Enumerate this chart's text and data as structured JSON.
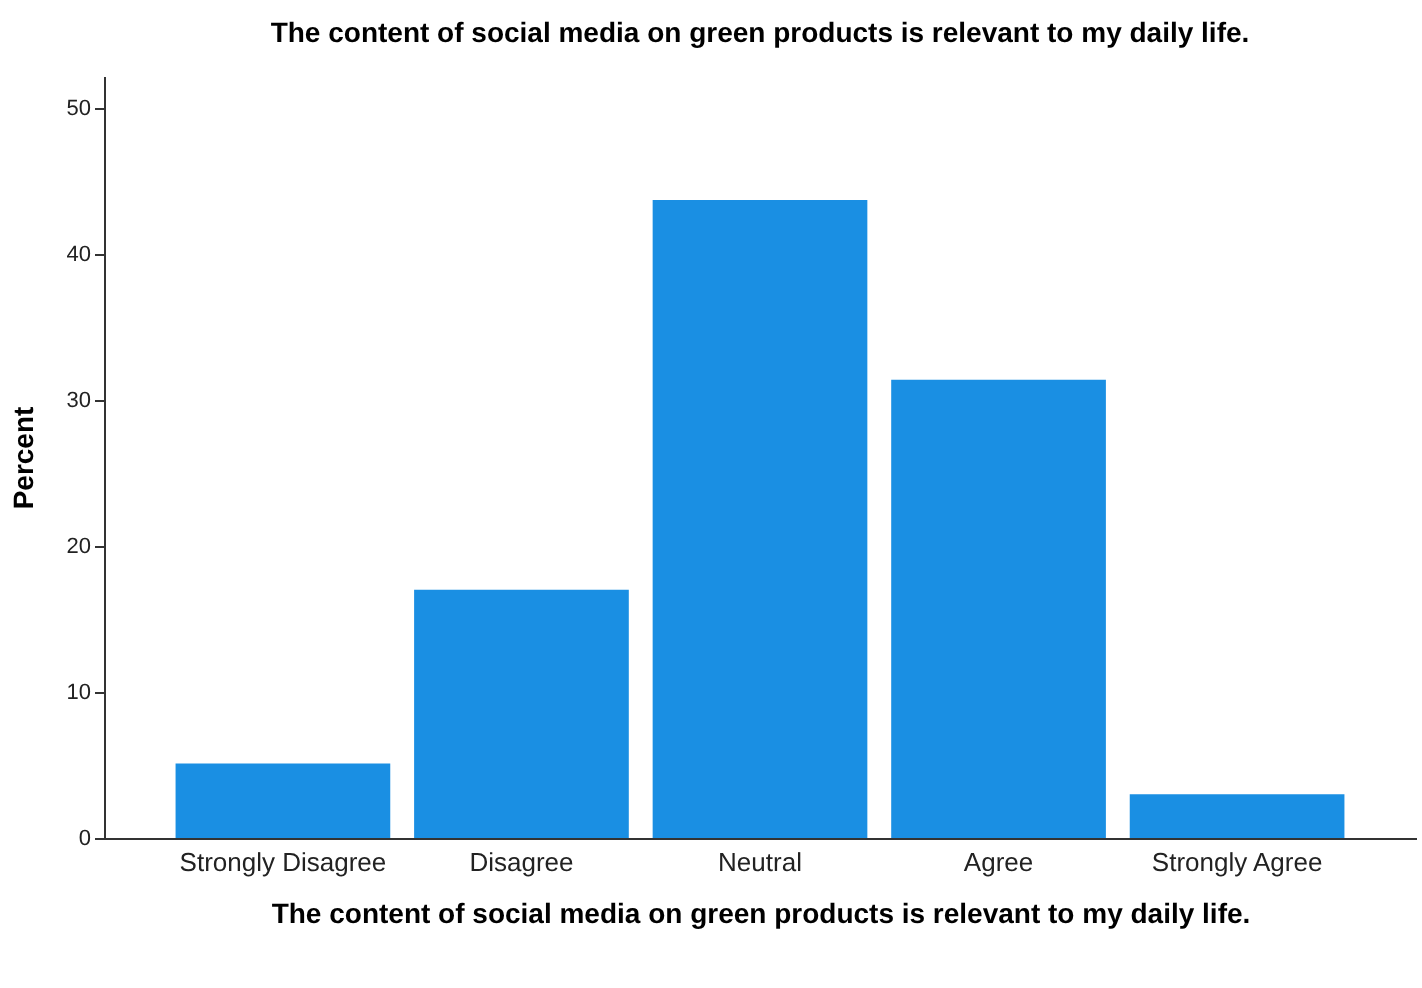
{
  "chart_data": {
    "type": "bar",
    "title": "The content of social media on green products is relevant to my daily life.",
    "xlabel": "The content of social media on green products is relevant to my daily life.",
    "ylabel": "Percent",
    "categories": [
      "Strongly Disagree",
      "Disagree",
      "Neutral",
      "Agree",
      "Strongly Agree"
    ],
    "values": [
      5.1,
      17.0,
      43.7,
      31.4,
      3.0
    ],
    "color": "#1a8fe3",
    "ylim": [
      0,
      52.2
    ],
    "yticks": [
      0,
      10,
      20,
      30,
      40,
      50
    ],
    "grid": false
  }
}
